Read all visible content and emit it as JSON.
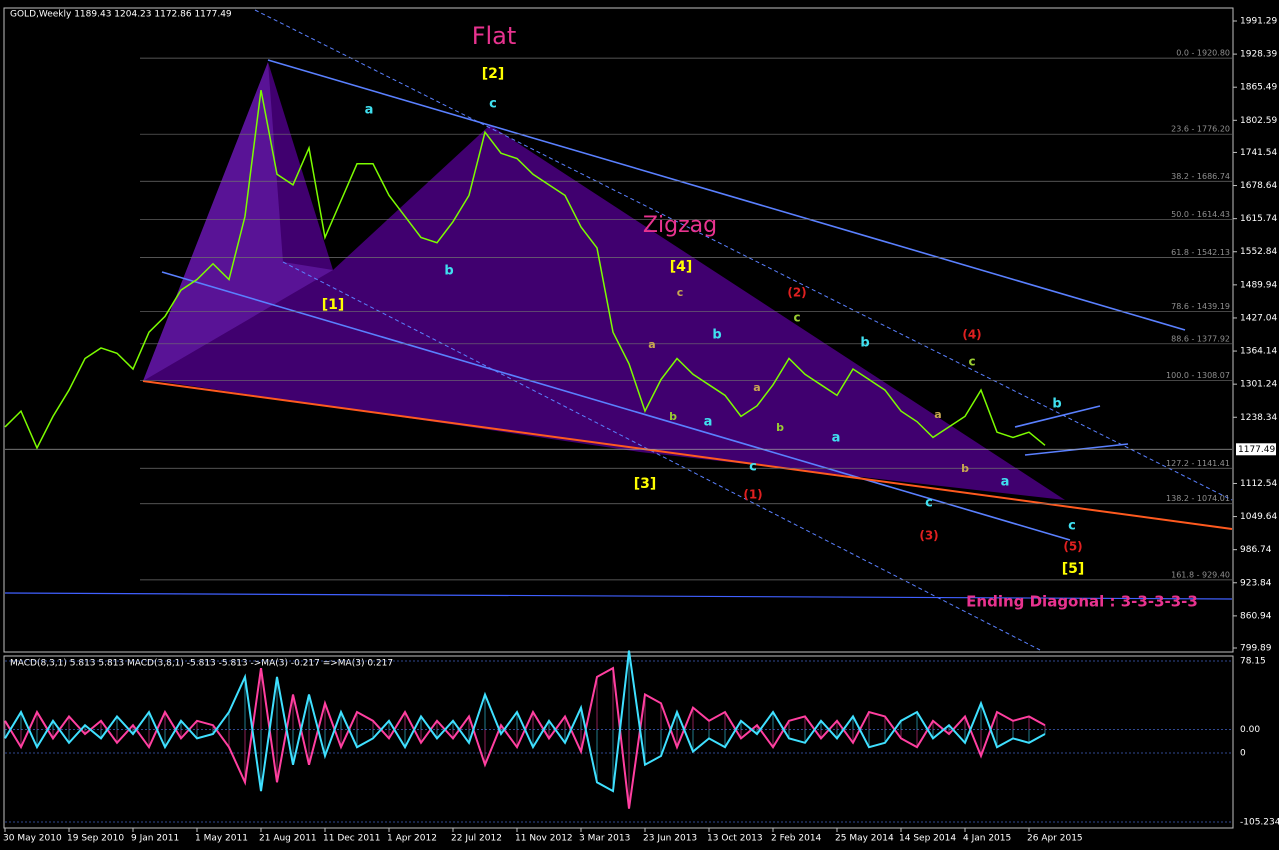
{
  "chart_data": [
    {
      "type": "line",
      "header": "GOLD,Weekly  1189.43 1204.23 1172.86 1177.49",
      "categories": [
        "30 May 2010",
        null,
        null,
        null,
        "19 Sep 2010",
        null,
        null,
        null,
        "9 Jan 2011",
        null,
        null,
        null,
        "1 May 2011",
        null,
        null,
        null,
        "21 Aug 2011",
        null,
        null,
        null,
        "11 Dec 2011",
        null,
        null,
        null,
        "1 Apr 2012",
        null,
        null,
        null,
        "22 Jul 2012",
        null,
        null,
        null,
        "11 Nov 2012",
        null,
        null,
        null,
        "3 Mar 2013",
        null,
        null,
        null,
        "23 Jun 2013",
        null,
        null,
        null,
        "13 Oct 2013",
        null,
        null,
        null,
        "2 Feb 2014",
        null,
        null,
        null,
        "25 May 2014",
        null,
        null,
        null,
        "14 Sep 2014",
        null,
        null,
        null,
        "4 Jan 2015",
        null,
        null,
        null,
        "26 Apr 2015",
        null
      ],
      "series": [
        {
          "color": "#7cfc00",
          "values": [
            1220,
            1250,
            1180,
            1240,
            1290,
            1350,
            1370,
            1360,
            1330,
            1400,
            1430,
            1480,
            1500,
            1530,
            1500,
            1620,
            1860,
            1700,
            1680,
            1750,
            1580,
            1650,
            1720,
            1720,
            1660,
            1620,
            1580,
            1570,
            1610,
            1660,
            1780,
            1740,
            1730,
            1700,
            1680,
            1660,
            1600,
            1560,
            1400,
            1340,
            1250,
            1310,
            1350,
            1320,
            1300,
            1280,
            1240,
            1260,
            1300,
            1350,
            1320,
            1300,
            1280,
            1330,
            1310,
            1290,
            1250,
            1230,
            1200,
            1220,
            1240,
            1290,
            1210,
            1200,
            1210,
            1185
          ]
        }
      ],
      "ylim": [
        796.1,
        2012.2
      ],
      "yticks": [
        1991.29,
        1928.39,
        1865.49,
        1802.59,
        1741.54,
        1678.64,
        1615.74,
        1552.84,
        1489.94,
        1427.04,
        1364.14,
        1301.24,
        1238.34,
        1112.54,
        1049.64,
        986.74,
        923.84,
        860.94,
        799.89
      ],
      "last_price": 1177.49,
      "fib_levels": [
        {
          "value": 1920.8,
          "label": "0.0 - 1920.80"
        },
        {
          "value": 1776.2,
          "label": "23.6 - 1776.20"
        },
        {
          "value": 1686.74,
          "label": "38.2 - 1686.74"
        },
        {
          "value": 1614.43,
          "label": "50.0 - 1614.43"
        },
        {
          "value": 1542.13,
          "label": "61.8 - 1542.13"
        },
        {
          "value": 1439.19,
          "label": "78.6 - 1439.19"
        },
        {
          "value": 1377.92,
          "label": "88.6 - 1377.92"
        },
        {
          "value": 1308.07,
          "label": "100.0 - 1308.07"
        },
        {
          "value": 1141.41,
          "label": "127.2 - 1141.41"
        },
        {
          "value": 1074.01,
          "label": "138.2 - 1074.01"
        },
        {
          "value": 929.4,
          "label": "161.8 - 929.40"
        }
      ],
      "annotations": [
        {
          "text": "Flat",
          "color": "#e8338f"
        },
        {
          "text": "[2]",
          "color": "#ffff00"
        },
        {
          "text": "c",
          "color": "#40e0f0"
        },
        {
          "text": "a",
          "color": "#40e0f0"
        },
        {
          "text": "b",
          "color": "#40e0f0"
        },
        {
          "text": "[1]",
          "color": "#ffff00"
        },
        {
          "text": "Zigzag",
          "color": "#e8338f"
        },
        {
          "text": "[4]",
          "color": "#ffff00"
        },
        {
          "text": "c",
          "color": "#c8a850"
        },
        {
          "text": "(2)",
          "color": "#e02020"
        },
        {
          "text": "c",
          "color": "#9acd32"
        },
        {
          "text": "b",
          "color": "#40e0f0"
        },
        {
          "text": "a",
          "color": "#c8a850"
        },
        {
          "text": "b",
          "color": "#9acd32"
        },
        {
          "text": "a",
          "color": "#40e0f0"
        },
        {
          "text": "a",
          "color": "#c8a850"
        },
        {
          "text": "b",
          "color": "#9acd32"
        },
        {
          "text": "c",
          "color": "#40e0f0"
        },
        {
          "text": "(1)",
          "color": "#e02020"
        },
        {
          "text": "[3]",
          "color": "#ffff00"
        },
        {
          "text": "b",
          "color": "#40e0f0"
        },
        {
          "text": "a",
          "color": "#40e0f0"
        },
        {
          "text": "(4)",
          "color": "#e02020"
        },
        {
          "text": "c",
          "color": "#9acd32"
        },
        {
          "text": "a",
          "color": "#c8a850"
        },
        {
          "text": "b",
          "color": "#c8a850"
        },
        {
          "text": "c",
          "color": "#40e0f0"
        },
        {
          "text": "(3)",
          "color": "#e02020"
        },
        {
          "text": "a",
          "color": "#40e0f0"
        },
        {
          "text": "b",
          "color": "#40e0f0"
        },
        {
          "text": "c",
          "color": "#40e0f0"
        },
        {
          "text": "(5)",
          "color": "#e02020"
        },
        {
          "text": "[5]",
          "color": "#ffff00"
        },
        {
          "text": "Ending Diagonal : 3-3-3-3-3",
          "color": "#e8338f"
        }
      ]
    },
    {
      "type": "line",
      "title": "MACD(8,3,1) 5.813 5.813  MACD(3,8,1) -5.813 -5.813  ->MA(3) -0.217  =>MA(3) 0.217",
      "series": [
        {
          "color": "#ff3fa0",
          "values": [
            10,
            -20,
            20,
            -10,
            15,
            -5,
            10,
            -15,
            5,
            -20,
            20,
            -10,
            10,
            5,
            -20,
            -60,
            70,
            -60,
            40,
            -40,
            30,
            -20,
            20,
            10,
            -10,
            20,
            -15,
            10,
            -10,
            15,
            -40,
            5,
            -20,
            20,
            -10,
            15,
            -25,
            60,
            70,
            -90,
            40,
            30,
            -20,
            25,
            10,
            20,
            -10,
            5,
            -20,
            10,
            15,
            -10,
            10,
            -15,
            20,
            15,
            -10,
            -20,
            10,
            -5,
            15,
            -30,
            20,
            10,
            15,
            5
          ]
        },
        {
          "color": "#3fe0ff",
          "values": [
            -10,
            20,
            -20,
            10,
            -15,
            5,
            -10,
            15,
            -5,
            20,
            -20,
            10,
            -10,
            -5,
            20,
            60,
            -70,
            60,
            -40,
            40,
            -30,
            20,
            -20,
            -10,
            10,
            -20,
            15,
            -10,
            10,
            -15,
            40,
            -5,
            20,
            -20,
            10,
            -15,
            25,
            -60,
            -70,
            90,
            -40,
            -30,
            20,
            -25,
            -10,
            -20,
            10,
            -5,
            20,
            -10,
            -15,
            10,
            -10,
            15,
            -20,
            -15,
            10,
            20,
            -10,
            5,
            -15,
            30,
            -20,
            -10,
            -15,
            -5
          ]
        }
      ],
      "ylim": [
        -105.234,
        78.15
      ],
      "yticks": [
        78.15,
        {
          "value": 0,
          "label": "0.00"
        },
        -105.234
      ],
      "y2lim": [
        -78.6,
        104.8
      ],
      "y2ticks": [
        0
      ]
    }
  ]
}
